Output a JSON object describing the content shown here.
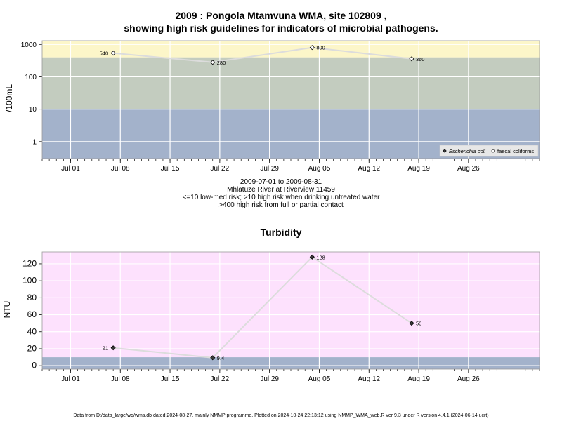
{
  "header": {
    "title_line1": "2009 : Pongola Mtamvuna WMA, site 102809 ,",
    "title_line2": "showing high risk guidelines for indicators of microbial pathogens."
  },
  "info": {
    "line1": "2009-07-01 to 2009-08-31",
    "line2": "Mhlatuze River at Riverview 11459",
    "line3": "<=10 low-med risk; >10 high risk when drinking untreated water",
    "line4": ">400 high risk from full or partial contact"
  },
  "footer": {
    "text": "Data from D:/data_large/wq/wms.db dated 2024-08-27, mainly NMMP programme. Plotted on 2024-10-24 22:13:12 using NMMP_WMA_web.R ver 9.3 under R version 4.4.1 (2024-06-14 ucrt)"
  },
  "colors": {
    "low_band": "#a3b2cb",
    "mid_band": "#c3ccbf",
    "high_band": "#fcf6c9",
    "turbidity_bg": "#fde1fd",
    "line": "#dcdcdc",
    "grid": "#ffffff"
  },
  "chart_data": [
    {
      "type": "line",
      "title": "",
      "ylabel": "/100mL",
      "scale": "log",
      "ylim": [
        0.3,
        1300
      ],
      "yticks": [
        1,
        10,
        100,
        1000
      ],
      "ytick_labels": [
        "1",
        "10",
        "100",
        "1000"
      ],
      "xlim": [
        "2009-06-27",
        "2009-09-05"
      ],
      "xticks": [
        "2009-07-01",
        "2009-07-08",
        "2009-07-15",
        "2009-07-22",
        "2009-07-29",
        "2009-08-05",
        "2009-08-12",
        "2009-08-19",
        "2009-08-26"
      ],
      "xtick_labels": [
        "Jul 01",
        "Jul 08",
        "Jul 15",
        "Jul 22",
        "Jul 29",
        "Aug 05",
        "Aug 12",
        "Aug 19",
        "Aug 26"
      ],
      "bands": [
        {
          "from": 0.3,
          "to": 10,
          "color": "#a3b2cb"
        },
        {
          "from": 10,
          "to": 400,
          "color": "#c3ccbf"
        },
        {
          "from": 400,
          "to": 1300,
          "color": "#fcf6c9"
        }
      ],
      "series": [
        {
          "name": "Escherichia coli",
          "marker": "filled-diamond",
          "x": [],
          "values": []
        },
        {
          "name": "faecal coliforms",
          "marker": "open-diamond",
          "x": [
            "2009-07-07",
            "2009-07-21",
            "2009-08-04",
            "2009-08-18"
          ],
          "values": [
            540,
            280,
            800,
            360
          ],
          "labels": [
            "540",
            "280",
            "800",
            "360"
          ]
        }
      ],
      "legend": "bottom-right",
      "grid": true
    },
    {
      "type": "line",
      "title": "Turbidity",
      "ylabel": "NTU",
      "scale": "linear",
      "ylim": [
        -4,
        134
      ],
      "yticks": [
        0,
        20,
        40,
        60,
        80,
        100,
        120
      ],
      "ytick_labels": [
        "0",
        "20",
        "40",
        "60",
        "80",
        "100",
        "120"
      ],
      "xlim": [
        "2009-06-27",
        "2009-09-05"
      ],
      "xticks": [
        "2009-07-01",
        "2009-07-08",
        "2009-07-15",
        "2009-07-22",
        "2009-07-29",
        "2009-08-05",
        "2009-08-12",
        "2009-08-19",
        "2009-08-26"
      ],
      "xtick_labels": [
        "Jul 01",
        "Jul 08",
        "Jul 15",
        "Jul 22",
        "Jul 29",
        "Aug 05",
        "Aug 12",
        "Aug 19",
        "Aug 26"
      ],
      "bands": [
        {
          "from": -4,
          "to": 10,
          "color": "#a3b2cb"
        },
        {
          "from": 10,
          "to": 134,
          "color": "#fde1fd"
        }
      ],
      "series": [
        {
          "name": "",
          "marker": "filled-diamond",
          "x": [
            "2009-07-07",
            "2009-07-21",
            "2009-08-04",
            "2009-08-18"
          ],
          "values": [
            21,
            9.4,
            128,
            50
          ],
          "labels": [
            "21",
            "9.4",
            "128",
            "50"
          ]
        }
      ],
      "grid": true
    }
  ]
}
